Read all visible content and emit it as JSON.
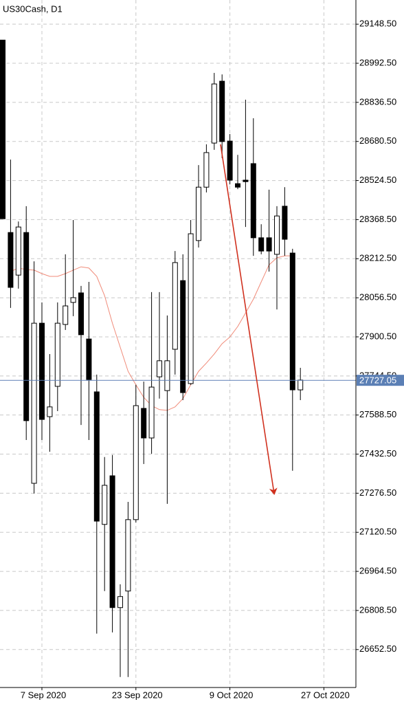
{
  "chart_data": {
    "type": "candlestick",
    "title": "US30Cash, D1",
    "categories": [
      null,
      null,
      null,
      null,
      null,
      "7 Sep 2020",
      null,
      null,
      null,
      null,
      null,
      null,
      null,
      null,
      null,
      null,
      null,
      "23 Sep 2020",
      null,
      null,
      null,
      null,
      null,
      null,
      null,
      null,
      null,
      null,
      null,
      "9 Oct 2020",
      null,
      null,
      null,
      null,
      null,
      null,
      null,
      null,
      null,
      null,
      null,
      "27 Oct 2020"
    ],
    "open": [
      29085,
      28317,
      28147,
      28317,
      27316,
      27955,
      27582,
      27703,
      27950,
      28038,
      28076,
      27892,
      27681,
      27152,
      27346,
      26820,
      26886,
      27171,
      27615,
      27497,
      27741,
      27686,
      27851,
      28125,
      27714,
      28285,
      28498,
      28674,
      28921,
      28682,
      28512,
      28526,
      28592,
      28296,
      28296,
      28230,
      28422,
      28235,
      27689,
      null,
      null,
      null
    ],
    "high": [
      29085,
      28608,
      28361,
      28422,
      28202,
      28038,
      27832,
      28038,
      28230,
      28367,
      28104,
      28120,
      27750,
      27421,
      27429,
      26913,
      27242,
      27709,
      27722,
      28079,
      28079,
      27986,
      28243,
      28230,
      28367,
      28586,
      28669,
      28954,
      28948,
      28710,
      28627,
      28847,
      28773,
      28350,
      28488,
      28422,
      28498,
      28252,
      27777,
      null,
      null,
      null
    ],
    "low": [
      28372,
      28016,
      28093,
      27489,
      27275,
      27489,
      27442,
      27604,
      27928,
      27983,
      27549,
      27489,
      26716,
      26886,
      26721,
      26543,
      26543,
      27160,
      27393,
      27434,
      27654,
      27234,
      27750,
      27648,
      27709,
      28257,
      28477,
      28647,
      28614,
      28509,
      28490,
      28339,
      28224,
      28230,
      28161,
      28010,
      28224,
      27366,
      27648,
      null,
      null,
      null
    ],
    "close": [
      28372,
      28098,
      28339,
      27566,
      27955,
      27571,
      27621,
      27955,
      28024,
      28057,
      27909,
      27730,
      27165,
      27308,
      26820,
      26864,
      27171,
      27626,
      27497,
      27700,
      27805,
      27805,
      28197,
      27678,
      28312,
      28498,
      28636,
      28910,
      28680,
      28526,
      28498,
      28520,
      28296,
      28243,
      28243,
      28383,
      28290,
      27689,
      27728,
      null,
      null,
      null
    ],
    "bull_color": "#ffffff",
    "bear_color": "#000000",
    "overlay": {
      "color": "#f08a78",
      "values": [
        null,
        28161,
        28175,
        28169,
        28167,
        28153,
        28142,
        28142,
        28153,
        28167,
        28180,
        28175,
        28142,
        28065,
        27955,
        27859,
        27763,
        27709,
        27659,
        27626,
        27610,
        27607,
        27621,
        27654,
        27709,
        27763,
        27796,
        27832,
        27873,
        27900,
        27942,
        27996,
        28051,
        28120,
        28188,
        28216,
        28224,
        28224,
        null,
        null,
        null,
        null
      ]
    },
    "last_price": 27727.05,
    "last_price_color": "#5b7fb5",
    "ylim": [
      26501,
      29245
    ],
    "yticks": [
      {
        "value": 29148.5,
        "label": "29148.50"
      },
      {
        "value": 28992.5,
        "label": "28992.50"
      },
      {
        "value": 28836.5,
        "label": "28836.50"
      },
      {
        "value": 28680.5,
        "label": "28680.50"
      },
      {
        "value": 28524.5,
        "label": "28524.50"
      },
      {
        "value": 28368.5,
        "label": "28368.50"
      },
      {
        "value": 28212.5,
        "label": "28212.50"
      },
      {
        "value": 28056.5,
        "label": "28056.50"
      },
      {
        "value": 27900.5,
        "label": "27900.50"
      },
      {
        "value": 27744.5,
        "label": "27744.50"
      },
      {
        "value": 27588.5,
        "label": "27588.50"
      },
      {
        "value": 27432.5,
        "label": "27432.50"
      },
      {
        "value": 27276.5,
        "label": "27276.50"
      },
      {
        "value": 27120.5,
        "label": "27120.50"
      },
      {
        "value": 26964.5,
        "label": "26964.50"
      },
      {
        "value": 26808.5,
        "label": "26808.50"
      },
      {
        "value": 26652.5,
        "label": "26652.50"
      }
    ],
    "grid": true
  }
}
